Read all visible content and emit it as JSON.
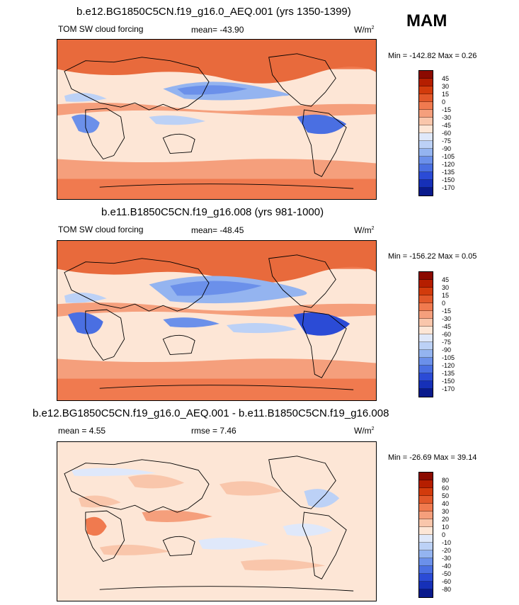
{
  "season": "MAM",
  "panels": [
    {
      "title": "b.e12.BG1850C5CN.f19_g16.0_AEQ.001 (yrs 1350-1399)",
      "variable": "TOM SW cloud forcing",
      "mean_text": "mean= -43.90",
      "units": "W/m",
      "units_exp": "2",
      "minmax": "Min = -142.82 Max =   0.26",
      "colorbar": {
        "labels": [
          "45",
          "30",
          "15",
          "0",
          "-15",
          "-30",
          "-45",
          "-60",
          "-75",
          "-90",
          "-105",
          "-120",
          "-135",
          "-150",
          "-170"
        ],
        "colors": [
          "#8b0a00",
          "#b51e00",
          "#d23b0c",
          "#e2582a",
          "#f07a4f",
          "#f59f7c",
          "#f9c6ab",
          "#fde6d6",
          "#dfe8fa",
          "#bcd1f6",
          "#94b4f0",
          "#6b90ea",
          "#4a6fe2",
          "#2b4bd6",
          "#1630b8",
          "#0a1a8c"
        ]
      }
    },
    {
      "title": "b.e11.B1850C5CN.f19_g16.008 (yrs 981-1000)",
      "variable": "TOM SW cloud forcing",
      "mean_text": "mean= -48.45",
      "units": "W/m",
      "units_exp": "2",
      "minmax": "Min = -156.22 Max =   0.05",
      "colorbar": {
        "labels": [
          "45",
          "30",
          "15",
          "0",
          "-15",
          "-30",
          "-45",
          "-60",
          "-75",
          "-90",
          "-105",
          "-120",
          "-135",
          "-150",
          "-170"
        ],
        "colors": [
          "#8b0a00",
          "#b51e00",
          "#d23b0c",
          "#e2582a",
          "#f07a4f",
          "#f59f7c",
          "#f9c6ab",
          "#fde6d6",
          "#dfe8fa",
          "#bcd1f6",
          "#94b4f0",
          "#6b90ea",
          "#4a6fe2",
          "#2b4bd6",
          "#1630b8",
          "#0a1a8c"
        ]
      }
    },
    {
      "title": "b.e12.BG1850C5CN.f19_g16.0_AEQ.001 - b.e11.B1850C5CN.f19_g16.008",
      "mean_text": "mean =   4.55",
      "rmse_text": "rmse =   7.46",
      "units": "W/m",
      "units_exp": "2",
      "minmax": "Min = -26.69 Max =  39.14",
      "colorbar": {
        "labels": [
          "80",
          "60",
          "50",
          "40",
          "30",
          "20",
          "10",
          "0",
          "-10",
          "-20",
          "-30",
          "-40",
          "-50",
          "-60",
          "-80"
        ],
        "colors": [
          "#8b0a00",
          "#b51e00",
          "#d23b0c",
          "#e2582a",
          "#f07a4f",
          "#f59f7c",
          "#f9c6ab",
          "#fde6d6",
          "#dfe8fa",
          "#bcd1f6",
          "#94b4f0",
          "#6b90ea",
          "#4a6fe2",
          "#2b4bd6",
          "#1630b8",
          "#0a1a8c"
        ]
      }
    }
  ]
}
